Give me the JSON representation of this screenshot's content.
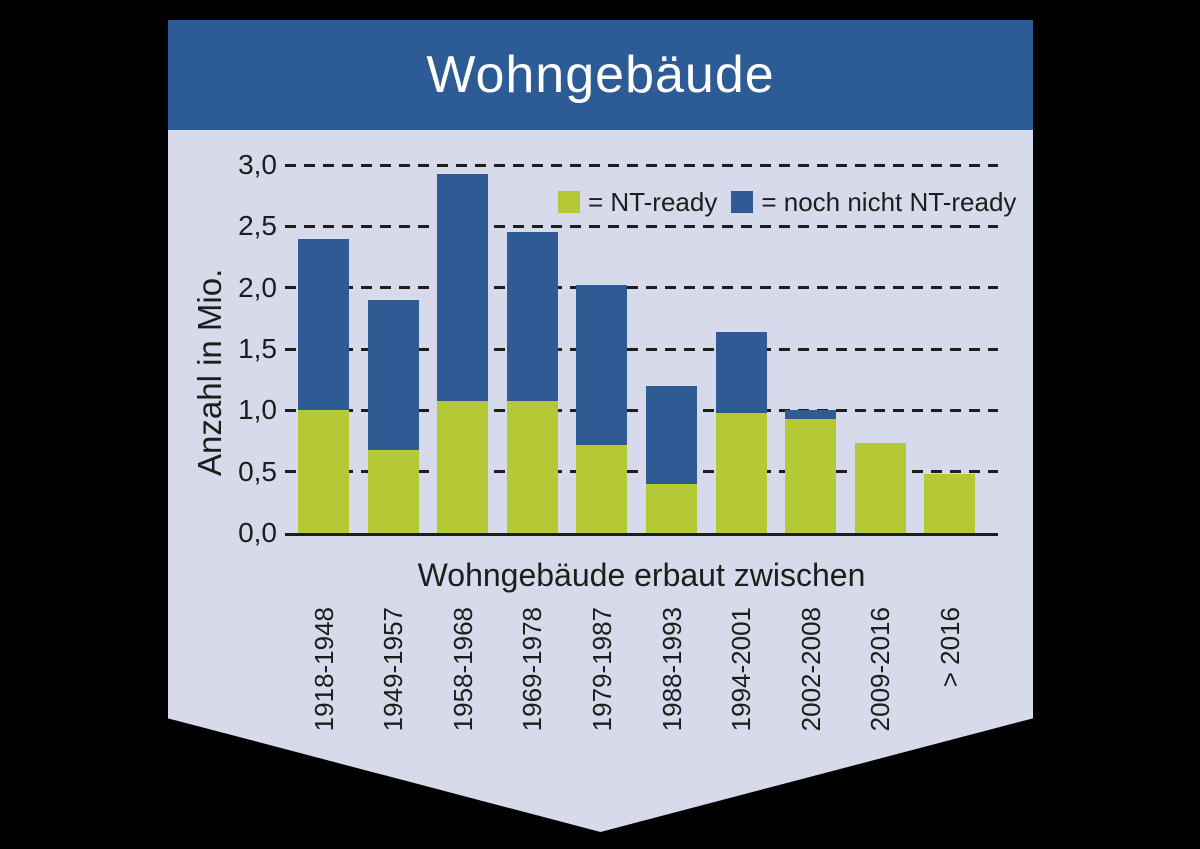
{
  "header": {
    "title": "Wohngebäude"
  },
  "legend": [
    {
      "label": "= NT-ready"
    },
    {
      "label": "= noch nicht NT-ready"
    }
  ],
  "colors": {
    "page_bg": "#000000",
    "banner_bg": "#d7daea",
    "header_bg": "#2d5b96",
    "title_text": "#ffffff",
    "text": "#1d1d1b",
    "grid": "#1d1d1b",
    "axis": "#1d1d1b",
    "bar_green": "#b4c935",
    "bar_blue": "#2e5b94"
  },
  "chart_data": {
    "type": "bar",
    "stacked": true,
    "title": "Wohngebäude",
    "x_axis_title": "Wohngebäude erbaut zwischen",
    "y_axis_title": "Anzahl in Mio.",
    "categories": [
      "1918-1948",
      "1949-1957",
      "1958-1968",
      "1969-1978",
      "1979-1987",
      "1988-1993",
      "1994-2001",
      "2002-2008",
      "2009-2016",
      "> 2016"
    ],
    "series": [
      {
        "name": "NT-ready",
        "color": "#b4c935",
        "values": [
          1.0,
          0.68,
          1.08,
          1.08,
          0.72,
          0.4,
          0.98,
          0.93,
          0.73,
          0.48
        ]
      },
      {
        "name": "noch nicht NT-ready",
        "color": "#2e5b94",
        "values": [
          1.4,
          1.22,
          1.85,
          1.37,
          1.3,
          0.8,
          0.66,
          0.07,
          0.0,
          0.0
        ]
      }
    ],
    "totals": [
      2.4,
      1.9,
      2.93,
      2.45,
      2.02,
      1.2,
      1.64,
      1.0,
      0.73,
      0.48
    ],
    "ylim": [
      0,
      3
    ],
    "ytick_values": [
      0,
      0.5,
      1,
      1.5,
      2,
      2.5,
      3
    ],
    "ytick_labels": [
      "0,0",
      "0,5",
      "1,0",
      "1,5",
      "2,0",
      "2,5",
      "3,0"
    ],
    "grid": "horizontal dashed",
    "legend_position": "inside top-right"
  }
}
